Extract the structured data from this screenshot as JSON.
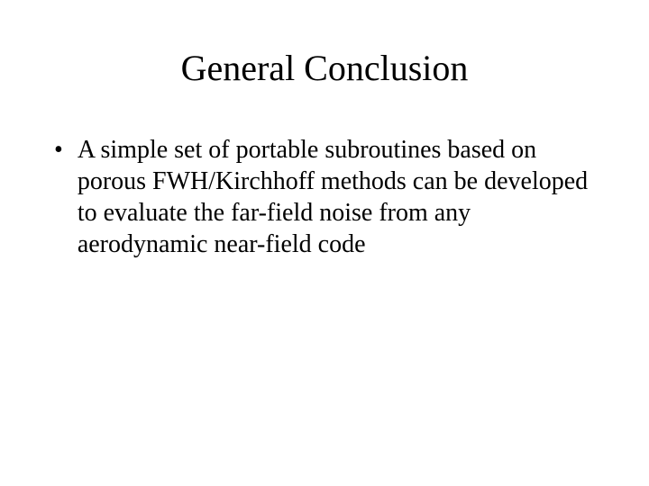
{
  "slide": {
    "title": "General Conclusion",
    "bullets": [
      {
        "marker": "•",
        "text": "A simple set of portable subroutines based on porous FWH/Kirchhoff methods can be developed to evaluate the far-field noise from any aerodynamic near-field code"
      }
    ],
    "background_color": "#ffffff",
    "text_color": "#000000",
    "title_fontsize": 40,
    "body_fontsize": 28,
    "font_family": "Times New Roman"
  }
}
